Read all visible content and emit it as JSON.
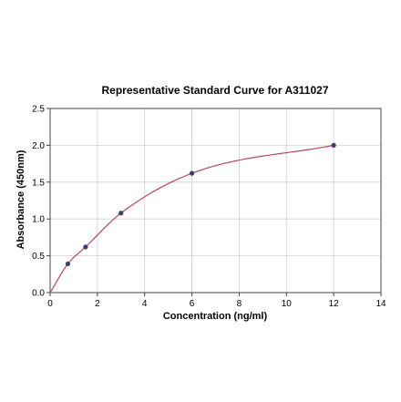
{
  "chart_data": {
    "type": "scatter",
    "title": "Representative Standard Curve for A311027",
    "xlabel": "Concentration (ng/ml)",
    "ylabel": "Absorbance (450nm)",
    "xlim": [
      0,
      14
    ],
    "ylim": [
      0,
      2.5
    ],
    "x_ticks": [
      "0",
      "2",
      "4",
      "6",
      "8",
      "10",
      "12",
      "14"
    ],
    "y_ticks": [
      "0.0",
      "0.5",
      "1.0",
      "1.5",
      "2.0",
      "2.5"
    ],
    "grid": true,
    "series": [
      {
        "points": [
          {
            "x": 0,
            "y": 0.0
          },
          {
            "x": 0.75,
            "y": 0.39
          },
          {
            "x": 1.5,
            "y": 0.62
          },
          {
            "x": 3,
            "y": 1.08
          },
          {
            "x": 6,
            "y": 1.62
          },
          {
            "x": 12,
            "y": 2.0
          }
        ],
        "marker_color": "#3b3f6b",
        "fit_curve": true,
        "fit_color": "#b5485f"
      }
    ]
  }
}
